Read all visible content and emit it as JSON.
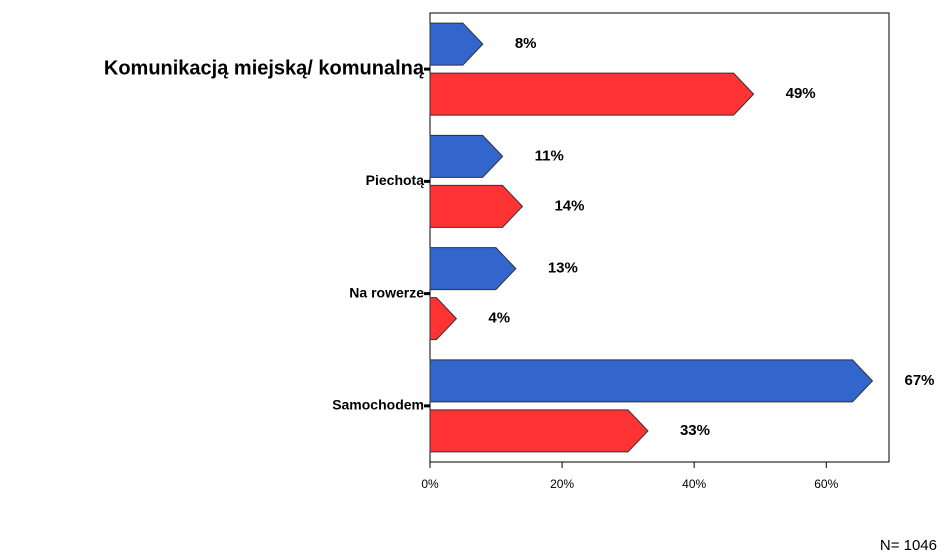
{
  "chart_data": {
    "type": "bar",
    "orientation": "horizontal",
    "categories": [
      "Komunikacją miejską/ komunalną",
      "Piechotą",
      "Na rowerze",
      "Samochodem"
    ],
    "series": [
      {
        "color": "#3366cc",
        "values": [
          8,
          11,
          13,
          67
        ],
        "value_labels": [
          "8%",
          "11%",
          "13%",
          "67%"
        ]
      },
      {
        "color": "#ff3333",
        "values": [
          49,
          14,
          4,
          33
        ],
        "value_labels": [
          "49%",
          "14%",
          "4%",
          "33%"
        ]
      }
    ],
    "xlim": [
      0,
      69.5
    ],
    "xticks": [
      {
        "value": 0,
        "label": "0%"
      },
      {
        "value": 20,
        "label": "20%"
      },
      {
        "value": 40,
        "label": "40%"
      },
      {
        "value": 60,
        "label": "60%"
      }
    ],
    "annotation": "N= 1046"
  }
}
